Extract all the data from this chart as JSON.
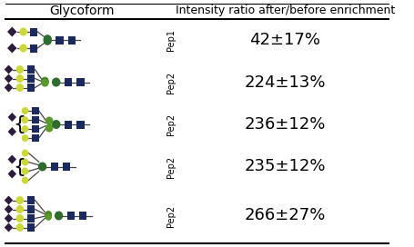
{
  "title_col1": "Glycoform",
  "title_col2": "Intensity ratio after/before enrichment",
  "rows": [
    {
      "label": "Pep1",
      "value": "42±17%"
    },
    {
      "label": "Pep2",
      "value": "224±13%"
    },
    {
      "label": "Pep2",
      "value": "236±12%"
    },
    {
      "label": "Pep2",
      "value": "235±12%"
    },
    {
      "label": "Pep2",
      "value": "266±27%"
    }
  ],
  "bg_color": "#ffffff",
  "border_color": "#000000",
  "diamond_color": "#2d1b3d",
  "circle_yellow_color": "#ccd83a",
  "circle_green_dark_color": "#2e6b2e",
  "circle_green_light_color": "#5a9a2a",
  "square_navy_color": "#1a2a5e",
  "line_color": "#444444",
  "text_color": "#000000",
  "header_fontsize": 10,
  "value_fontsize": 13,
  "pep_fontsize": 7
}
